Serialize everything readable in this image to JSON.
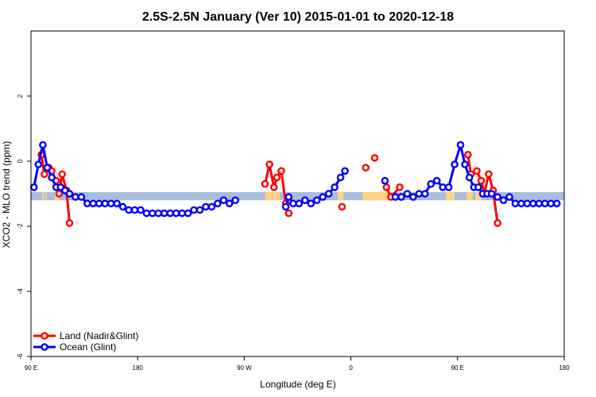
{
  "chart_data": {
    "type": "line",
    "title": "2.5S-2.5N January (Ver 10)   2015-01-01 to 2020-12-18",
    "xlabel": "Longitude (deg E)",
    "ylabel": "XCO2 - MLO trend (ppm)",
    "xlim": [
      90,
      450
    ],
    "ylim": [
      -6,
      4
    ],
    "x_ticks": [
      {
        "value": 90,
        "label": "90 E"
      },
      {
        "value": 162,
        "label": "180"
      },
      {
        "value": 234,
        "label": "90 W"
      },
      {
        "value": 306,
        "label": "0"
      },
      {
        "value": 378,
        "label": "90 E"
      },
      {
        "value": 450,
        "label": "180"
      }
    ],
    "y_ticks": [
      {
        "value": -6,
        "label": "-6"
      },
      {
        "value": -4,
        "label": "-4"
      },
      {
        "value": -2,
        "label": "-2"
      },
      {
        "value": 0,
        "label": "0"
      },
      {
        "value": 2,
        "label": "2"
      }
    ],
    "band": {
      "y_min": -1.2,
      "y_max": -0.95,
      "color": "#a7bddc",
      "highlight_color": "#ffd27f"
    },
    "band_highlights": [
      [
        97.5,
        98.5
      ],
      [
        99.5,
        100.5
      ],
      [
        106,
        109
      ],
      [
        248,
        258
      ],
      [
        297,
        301
      ],
      [
        314,
        332
      ],
      [
        370,
        376
      ],
      [
        384,
        388
      ],
      [
        390,
        394
      ]
    ],
    "series": [
      {
        "name": "Land (Nadir&Glint)",
        "color": "#ff0000",
        "segments": [
          [
            [
              97,
              0.2
            ],
            [
              99,
              -0.4
            ],
            [
              102,
              -0.2
            ],
            [
              104,
              -0.3
            ],
            [
              107,
              -0.6
            ],
            [
              109,
              -1.0
            ],
            [
              111,
              -0.4
            ],
            [
              114,
              -0.9
            ],
            [
              116,
              -1.9
            ]
          ],
          [
            [
              248,
              -0.7
            ],
            [
              251,
              -0.1
            ],
            [
              254,
              -0.8
            ],
            [
              256,
              -0.5
            ],
            [
              259,
              -0.3
            ],
            [
              262,
              -1.3
            ],
            [
              264,
              -1.6
            ]
          ],
          [
            [
              300,
              -1.4
            ]
          ],
          [
            [
              316,
              -0.2
            ]
          ],
          [
            [
              322,
              0.1
            ]
          ],
          [
            [
              330,
              -0.8
            ],
            [
              333,
              -1.1
            ],
            [
              339,
              -0.8
            ]
          ],
          [
            [
              385,
              0.2
            ],
            [
              387,
              -0.4
            ],
            [
              391,
              -0.3
            ],
            [
              394,
              -0.6
            ],
            [
              396,
              -1.0
            ],
            [
              399,
              -0.4
            ],
            [
              402,
              -0.9
            ],
            [
              405,
              -1.9
            ]
          ]
        ]
      },
      {
        "name": "Ocean (Glint)",
        "color": "#0000ff",
        "segments": [
          [
            [
              92,
              -0.8
            ],
            [
              95,
              -0.1
            ],
            [
              98,
              0.5
            ],
            [
              101,
              -0.2
            ],
            [
              104,
              -0.5
            ],
            [
              107,
              -0.8
            ],
            [
              110,
              -0.8
            ],
            [
              113,
              -0.9
            ],
            [
              116,
              -1.0
            ],
            [
              120,
              -1.1
            ],
            [
              124,
              -1.1
            ],
            [
              128,
              -1.3
            ],
            [
              132,
              -1.3
            ],
            [
              136,
              -1.3
            ],
            [
              140,
              -1.3
            ],
            [
              144,
              -1.3
            ],
            [
              148,
              -1.3
            ],
            [
              152,
              -1.4
            ],
            [
              156,
              -1.5
            ],
            [
              160,
              -1.5
            ],
            [
              164,
              -1.5
            ],
            [
              168,
              -1.6
            ],
            [
              172,
              -1.6
            ],
            [
              176,
              -1.6
            ],
            [
              180,
              -1.6
            ],
            [
              184,
              -1.6
            ],
            [
              188,
              -1.6
            ],
            [
              192,
              -1.6
            ],
            [
              196,
              -1.6
            ],
            [
              200,
              -1.5
            ],
            [
              204,
              -1.5
            ],
            [
              208,
              -1.4
            ],
            [
              212,
              -1.4
            ],
            [
              216,
              -1.3
            ],
            [
              220,
              -1.2
            ],
            [
              224,
              -1.3
            ],
            [
              228,
              -1.2
            ]
          ],
          [
            [
              262,
              -1.4
            ],
            [
              264,
              -1.1
            ],
            [
              267,
              -1.3
            ],
            [
              271,
              -1.3
            ],
            [
              275,
              -1.2
            ],
            [
              279,
              -1.3
            ],
            [
              283,
              -1.2
            ],
            [
              287,
              -1.1
            ],
            [
              291,
              -1.0
            ],
            [
              295,
              -0.8
            ],
            [
              299,
              -0.5
            ],
            [
              302,
              -0.3
            ]
          ],
          [
            [
              329,
              -0.6
            ]
          ],
          [
            [
              336,
              -1.1
            ],
            [
              340,
              -1.1
            ],
            [
              344,
              -1.0
            ],
            [
              348,
              -1.1
            ],
            [
              352,
              -1.0
            ],
            [
              356,
              -1.0
            ],
            [
              360,
              -0.7
            ],
            [
              364,
              -0.6
            ],
            [
              368,
              -0.8
            ],
            [
              372,
              -0.8
            ],
            [
              376,
              -0.1
            ],
            [
              380,
              0.5
            ],
            [
              383,
              -0.1
            ],
            [
              386,
              -0.5
            ],
            [
              389,
              -0.8
            ],
            [
              392,
              -0.8
            ],
            [
              395,
              -1.0
            ],
            [
              398,
              -1.0
            ],
            [
              401,
              -1.0
            ],
            [
              405,
              -1.1
            ],
            [
              409,
              -1.2
            ],
            [
              413,
              -1.1
            ],
            [
              417,
              -1.3
            ],
            [
              421,
              -1.3
            ],
            [
              425,
              -1.3
            ],
            [
              429,
              -1.3
            ],
            [
              433,
              -1.3
            ],
            [
              437,
              -1.3
            ],
            [
              441,
              -1.3
            ],
            [
              445,
              -1.3
            ]
          ]
        ]
      }
    ],
    "legend_position": "bottom-left"
  }
}
